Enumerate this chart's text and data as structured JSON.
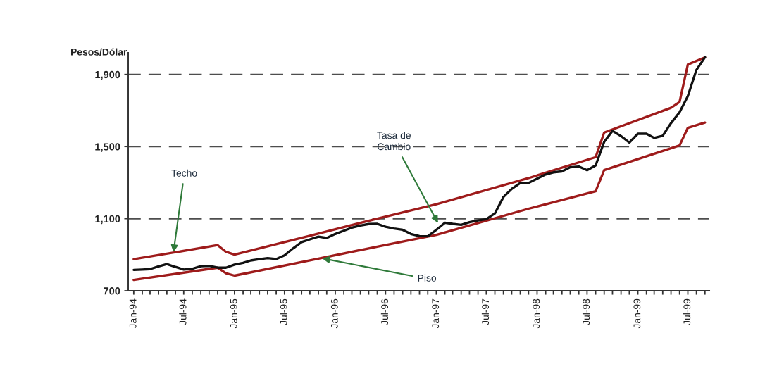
{
  "chart_data": {
    "type": "line",
    "ylabel": "Pesos/Dólar",
    "xlim": [
      "1993-12-12",
      "1999-09-17"
    ],
    "xticks": [
      {
        "value": "1994-01",
        "label": "Jan-94"
      },
      {
        "value": "1994-02",
        "label": null
      },
      {
        "value": "1994-03",
        "label": null
      },
      {
        "value": "1994-04",
        "label": null
      },
      {
        "value": "1994-05",
        "label": null
      },
      {
        "value": "1994-06",
        "label": null
      },
      {
        "value": "1994-07",
        "label": "Jul-94"
      },
      {
        "value": "1994-08",
        "label": null
      },
      {
        "value": "1994-09",
        "label": null
      },
      {
        "value": "1994-10",
        "label": null
      },
      {
        "value": "1994-11",
        "label": null
      },
      {
        "value": "1994-12",
        "label": null
      },
      {
        "value": "1995-01",
        "label": "Jan-95"
      },
      {
        "value": "1995-02",
        "label": null
      },
      {
        "value": "1995-03",
        "label": null
      },
      {
        "value": "1995-04",
        "label": null
      },
      {
        "value": "1995-05",
        "label": null
      },
      {
        "value": "1995-06",
        "label": null
      },
      {
        "value": "1995-07",
        "label": "Jul-95"
      },
      {
        "value": "1995-08",
        "label": null
      },
      {
        "value": "1995-09",
        "label": null
      },
      {
        "value": "1995-10",
        "label": null
      },
      {
        "value": "1995-11",
        "label": null
      },
      {
        "value": "1995-12",
        "label": null
      },
      {
        "value": "1996-01",
        "label": "Jan-96"
      },
      {
        "value": "1996-02",
        "label": null
      },
      {
        "value": "1996-03",
        "label": null
      },
      {
        "value": "1996-04",
        "label": null
      },
      {
        "value": "1996-05",
        "label": null
      },
      {
        "value": "1996-06",
        "label": null
      },
      {
        "value": "1996-07",
        "label": "Jul-96"
      },
      {
        "value": "1996-08",
        "label": null
      },
      {
        "value": "1996-09",
        "label": null
      },
      {
        "value": "1996-10",
        "label": null
      },
      {
        "value": "1996-11",
        "label": null
      },
      {
        "value": "1996-12",
        "label": null
      },
      {
        "value": "1997-01",
        "label": "Jan-97"
      },
      {
        "value": "1997-02",
        "label": null
      },
      {
        "value": "1997-03",
        "label": null
      },
      {
        "value": "1997-04",
        "label": null
      },
      {
        "value": "1997-05",
        "label": null
      },
      {
        "value": "1997-06",
        "label": null
      },
      {
        "value": "1997-07",
        "label": "Jul-97"
      },
      {
        "value": "1997-08",
        "label": null
      },
      {
        "value": "1997-09",
        "label": null
      },
      {
        "value": "1997-10",
        "label": null
      },
      {
        "value": "1997-11",
        "label": null
      },
      {
        "value": "1997-12",
        "label": null
      },
      {
        "value": "1998-01",
        "label": "Jan-98"
      },
      {
        "value": "1998-02",
        "label": null
      },
      {
        "value": "1998-03",
        "label": null
      },
      {
        "value": "1998-04",
        "label": null
      },
      {
        "value": "1998-05",
        "label": null
      },
      {
        "value": "1998-06",
        "label": null
      },
      {
        "value": "1998-07",
        "label": "Jul-98"
      },
      {
        "value": "1998-08",
        "label": null
      },
      {
        "value": "1998-09",
        "label": null
      },
      {
        "value": "1998-10",
        "label": null
      },
      {
        "value": "1998-11",
        "label": null
      },
      {
        "value": "1998-12",
        "label": null
      },
      {
        "value": "1999-01",
        "label": "Jan-99"
      },
      {
        "value": "1999-02",
        "label": null
      },
      {
        "value": "1999-03",
        "label": null
      },
      {
        "value": "1999-04",
        "label": null
      },
      {
        "value": "1999-05",
        "label": null
      },
      {
        "value": "1999-06",
        "label": null
      },
      {
        "value": "1999-07",
        "label": "Jul-99"
      },
      {
        "value": "1999-08",
        "label": null
      },
      {
        "value": "1999-09",
        "label": null
      }
    ],
    "ylim": [
      700,
      2020
    ],
    "yticks": [
      700,
      {
        "value": 1100,
        "label": "1,100"
      },
      {
        "value": 1500,
        "label": "1,500"
      },
      {
        "value": 1900,
        "label": "1,900"
      }
    ],
    "grid": "y",
    "series": [
      {
        "color": "#9e1b1b",
        "x": [
          "1994-01",
          "1994-11",
          "1994-12",
          "1995-01",
          "1995-10",
          "1996-06",
          "1997-01",
          "1997-12",
          "1998-08",
          "1998-09",
          "1999-05",
          "1999-06",
          "1999-07",
          "1999-09"
        ],
        "values": [
          875,
          953,
          916,
          901,
          1005,
          1100,
          1180,
          1325,
          1441,
          1578,
          1715,
          1747,
          1955,
          1995
        ]
      },
      {
        "color": "#9e1b1b",
        "x": [
          "1994-01",
          "1994-11",
          "1994-12",
          "1995-01",
          "1995-10",
          "1996-06",
          "1997-01",
          "1997-12",
          "1998-08",
          "1998-09",
          "1999-06",
          "1999-07",
          "1999-09"
        ],
        "values": [
          760,
          828,
          797,
          784,
          868,
          945,
          1010,
          1155,
          1252,
          1369,
          1506,
          1604,
          1633
        ]
      },
      {
        "color": "#111111",
        "x": [
          "1994-01",
          "1994-02",
          "1994-03",
          "1994-04",
          "1994-05",
          "1994-06",
          "1994-07",
          "1994-08",
          "1994-09",
          "1994-10",
          "1994-11",
          "1994-12",
          "1995-01",
          "1995-02",
          "1995-03",
          "1995-04",
          "1995-05",
          "1995-06",
          "1995-07",
          "1995-08",
          "1995-09",
          "1995-10",
          "1995-11",
          "1995-12",
          "1996-01",
          "1996-02",
          "1996-03",
          "1996-04",
          "1996-05",
          "1996-06",
          "1996-07",
          "1996-08",
          "1996-09",
          "1996-10",
          "1996-11",
          "1996-12",
          "1997-01",
          "1997-02",
          "1997-03",
          "1997-04",
          "1997-05",
          "1997-06",
          "1997-07",
          "1997-08",
          "1997-09",
          "1997-10",
          "1997-11",
          "1997-12",
          "1998-01",
          "1998-02",
          "1998-03",
          "1998-04",
          "1998-05",
          "1998-06",
          "1998-07",
          "1998-08",
          "1998-09",
          "1998-10",
          "1998-11",
          "1998-12",
          "1999-01",
          "1999-02",
          "1999-03",
          "1999-04",
          "1999-05",
          "1999-06",
          "1999-07",
          "1999-08",
          "1999-09"
        ],
        "values": [
          816,
          818,
          820,
          835,
          848,
          832,
          818,
          822,
          836,
          838,
          828,
          828,
          845,
          855,
          868,
          875,
          881,
          876,
          896,
          935,
          970,
          985,
          1000,
          993,
          1015,
          1033,
          1050,
          1062,
          1070,
          1071,
          1055,
          1045,
          1038,
          1015,
          1003,
          1002,
          1038,
          1077,
          1071,
          1066,
          1080,
          1090,
          1097,
          1129,
          1220,
          1265,
          1298,
          1298,
          1322,
          1345,
          1357,
          1362,
          1385,
          1389,
          1369,
          1395,
          1526,
          1587,
          1558,
          1522,
          1571,
          1571,
          1548,
          1560,
          1630,
          1690,
          1780,
          1925,
          1995
        ]
      }
    ],
    "annotations": [
      {
        "text": "Techo",
        "x": "1994-05-25",
        "y": 914
      },
      {
        "text": "Tasa de\nCambio",
        "x": "1997-01-07",
        "y": 1076
      },
      {
        "text": "Piso",
        "x": "1995-11-15",
        "y": 880
      }
    ]
  }
}
